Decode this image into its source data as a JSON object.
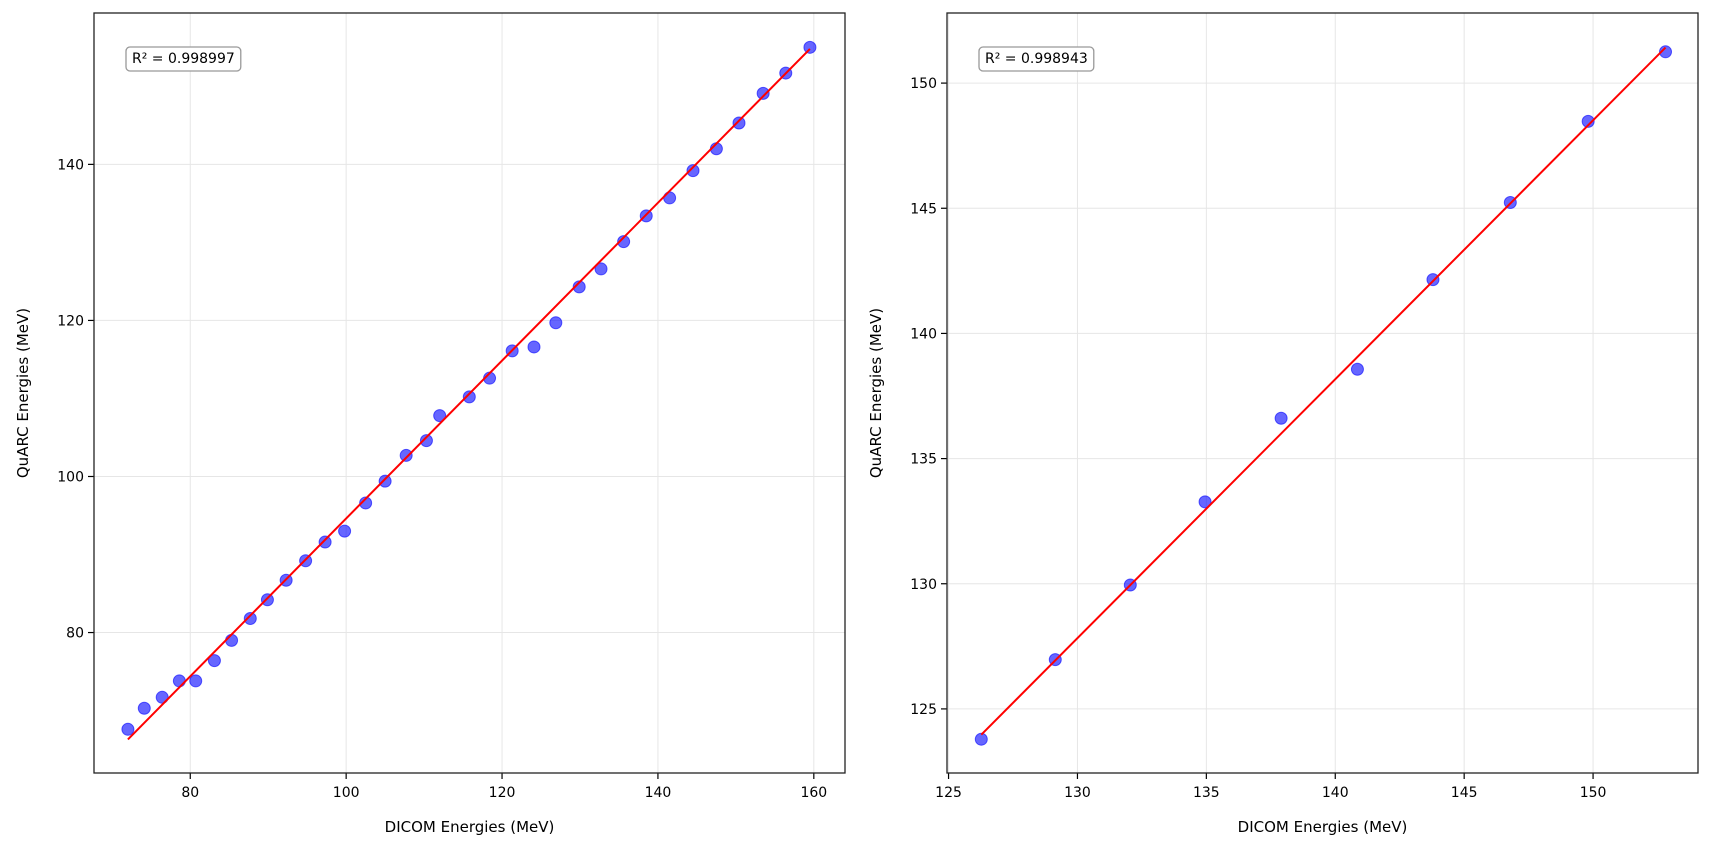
{
  "chart_data": [
    {
      "type": "scatter",
      "title": "",
      "xlabel": "DICOM Energies (MeV)",
      "ylabel": "QuARC Energies (MeV)",
      "xlim": [
        67.65,
        164.0
      ],
      "ylim": [
        62.0,
        159.4
      ],
      "xticks": [
        80,
        100,
        120,
        140,
        160
      ],
      "yticks": [
        80,
        100,
        120,
        140
      ],
      "grid": true,
      "annotation": "R² = 0.998997",
      "point_color": "#0000ff",
      "line_color": "#ff0000",
      "points": {
        "x": [
          72.0,
          74.1,
          76.4,
          78.6,
          80.7,
          83.1,
          85.3,
          87.7,
          89.9,
          92.3,
          94.8,
          97.3,
          99.8,
          102.5,
          105.0,
          107.7,
          110.3,
          112.0,
          115.8,
          118.4,
          121.3,
          124.1,
          126.9,
          129.9,
          132.7,
          135.6,
          138.5,
          141.5,
          144.5,
          147.5,
          150.4,
          153.5,
          156.4,
          159.5
        ],
        "y": [
          67.6,
          70.3,
          71.7,
          73.8,
          73.8,
          76.4,
          79.0,
          81.8,
          84.2,
          86.7,
          89.2,
          91.6,
          93.0,
          96.6,
          99.4,
          102.7,
          104.6,
          107.8,
          110.2,
          112.6,
          116.1,
          116.6,
          119.7,
          124.3,
          126.6,
          130.1,
          133.4,
          135.7,
          139.2,
          142.0,
          145.3,
          149.1,
          151.7,
          155.0
        ]
      },
      "fit_line": {
        "x": [
          72.0,
          159.5
        ],
        "y": [
          66.3,
          154.8
        ]
      }
    },
    {
      "type": "scatter",
      "title": "",
      "xlabel": "DICOM Energies (MeV)",
      "ylabel": "QuARC Energies (MeV)",
      "xlim": [
        124.94,
        154.07
      ],
      "ylim": [
        122.44,
        152.8
      ],
      "xticks": [
        125,
        130,
        135,
        140,
        145,
        150
      ],
      "yticks": [
        125,
        130,
        135,
        140,
        145,
        150
      ],
      "grid": true,
      "annotation": "R² = 0.998943",
      "point_color": "#0000ff",
      "line_color": "#ff0000",
      "points": {
        "x": [
          126.27,
          129.14,
          132.05,
          134.95,
          137.9,
          140.86,
          143.79,
          146.79,
          149.81,
          152.81
        ],
        "y": [
          123.79,
          126.97,
          129.95,
          133.27,
          136.61,
          138.57,
          142.15,
          145.23,
          148.47,
          151.25
        ]
      },
      "fit_line": {
        "x": [
          126.27,
          152.81
        ],
        "y": [
          123.97,
          151.42
        ]
      }
    }
  ]
}
